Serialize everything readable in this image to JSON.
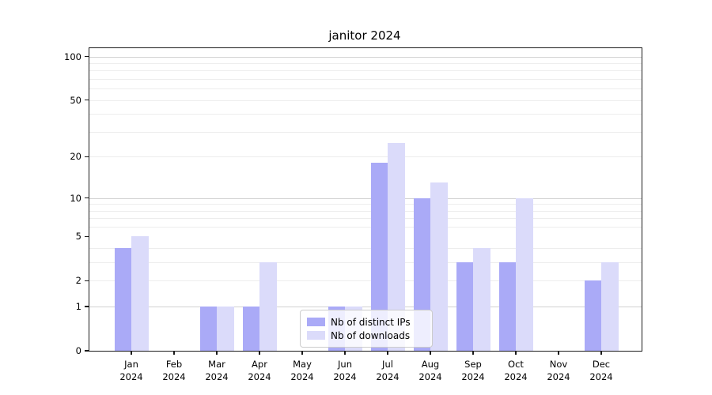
{
  "title": "janitor 2024",
  "legend": {
    "items": [
      {
        "label": "Nb of distinct IPs",
        "color": "#aaaaf7"
      },
      {
        "label": "Nb of downloads",
        "color": "#dbdbfa"
      }
    ]
  },
  "chart_data": {
    "type": "bar",
    "title": "janitor 2024",
    "categories": [
      "Jan",
      "Feb",
      "Mar",
      "Apr",
      "May",
      "Jun",
      "Jul",
      "Aug",
      "Sep",
      "Oct",
      "Nov",
      "Dec"
    ],
    "category_year": "2024",
    "series": [
      {
        "name": "Nb of distinct IPs",
        "color": "#aaaaf7",
        "values": [
          4,
          0,
          1,
          1,
          0,
          1,
          18,
          10,
          3,
          3,
          0,
          2
        ]
      },
      {
        "name": "Nb of downloads",
        "color": "#dbdbfa",
        "values": [
          5,
          0,
          1,
          3,
          0,
          1,
          25,
          13,
          4,
          10,
          0,
          3
        ]
      }
    ],
    "xlabel": "",
    "ylabel": "",
    "yscale": "log1p",
    "ylim": [
      0,
      114
    ],
    "ytick_values": [
      0,
      1,
      2,
      5,
      10,
      20,
      50,
      100
    ],
    "ytick_labels": [
      "0",
      "1",
      "2",
      "5",
      "10",
      "20",
      "50",
      "100"
    ],
    "major_gridlines": [
      1,
      10,
      100
    ],
    "minor_gridlines": [
      2,
      3,
      4,
      6,
      7,
      8,
      9,
      20,
      30,
      40,
      50,
      60,
      70,
      80,
      90
    ],
    "grid": true,
    "legend_position": "lower center"
  }
}
